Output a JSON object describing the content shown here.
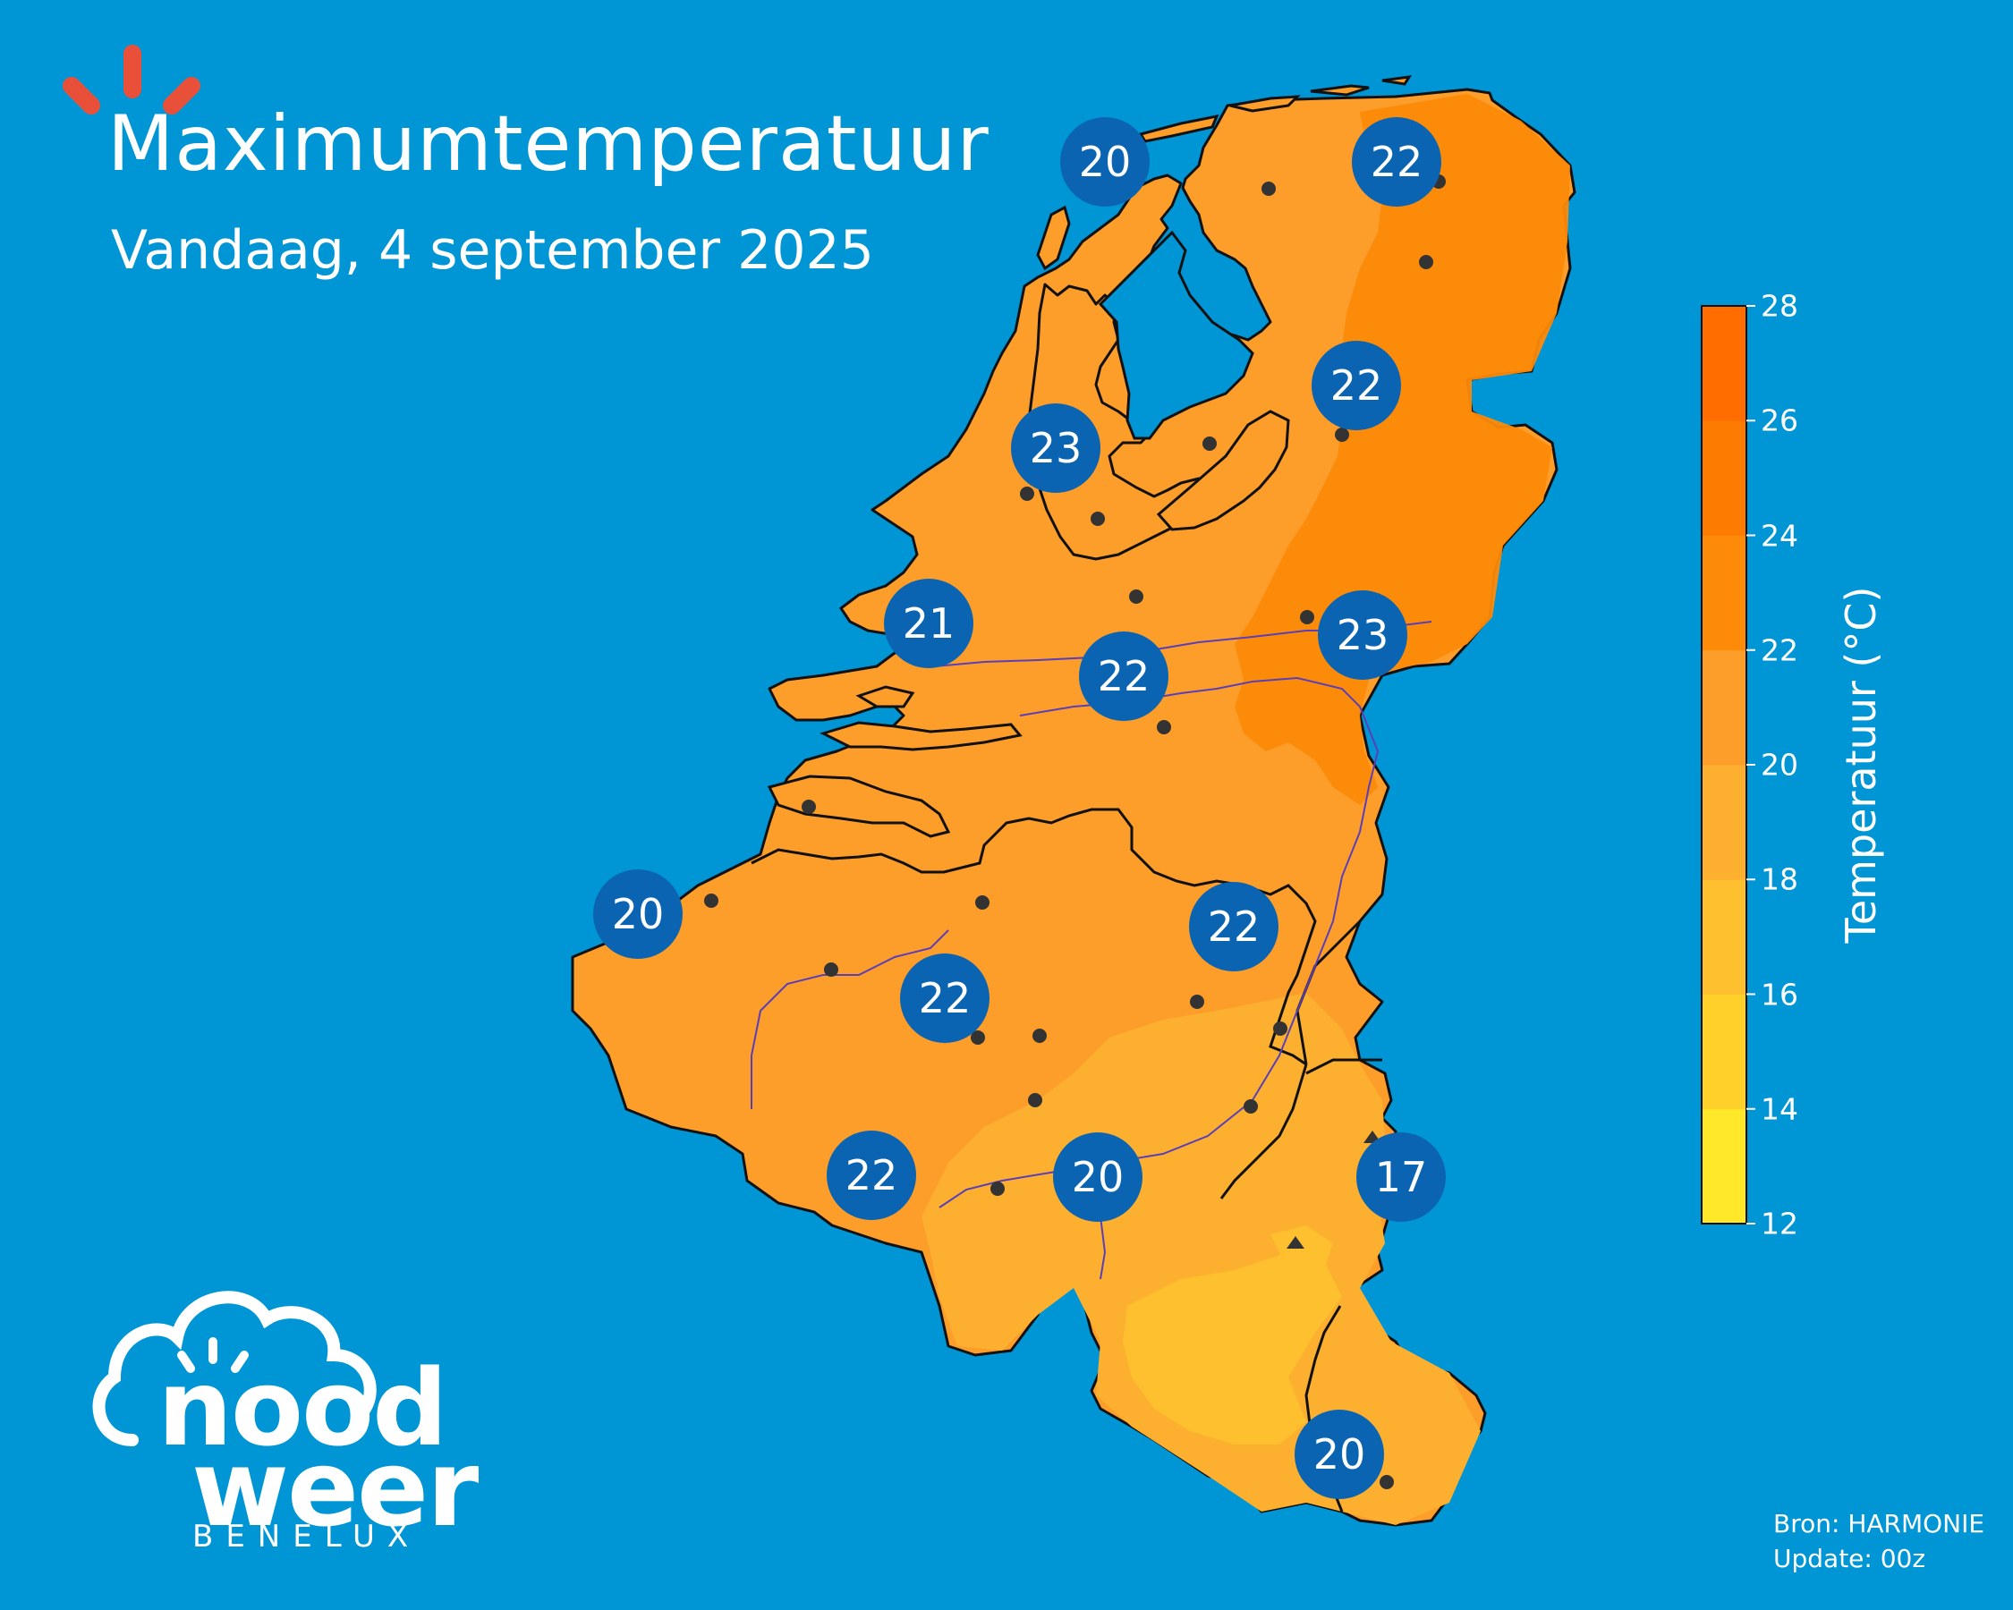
{
  "header": {
    "title": "Maximumtemperatuur",
    "subtitle": "Vandaag, 4 september 2025"
  },
  "colors": {
    "background": "#0096d6",
    "land": "#fd9d2a",
    "land_warm": "#fd8a08",
    "land_cool": "#fec02e",
    "badge": "#0b64b2",
    "border": "#111111",
    "river": "#5a3fb8",
    "logo_rays": "#e8503a"
  },
  "map": {
    "city_labels": [
      {
        "id": "vlieland",
        "value": "20"
      },
      {
        "id": "groningen",
        "value": "22"
      },
      {
        "id": "drenthe",
        "value": "22"
      },
      {
        "id": "den-helder",
        "value": "23"
      },
      {
        "id": "den-haag",
        "value": "21"
      },
      {
        "id": "utrecht",
        "value": "22"
      },
      {
        "id": "twente",
        "value": "23"
      },
      {
        "id": "oostende",
        "value": "20"
      },
      {
        "id": "limburg-nl",
        "value": "22"
      },
      {
        "id": "gent",
        "value": "22"
      },
      {
        "id": "henegouwen",
        "value": "22"
      },
      {
        "id": "namen",
        "value": "20"
      },
      {
        "id": "hoge-venen",
        "value": "17"
      },
      {
        "id": "luxemburg",
        "value": "20"
      }
    ]
  },
  "colorbar": {
    "title": "Temperatuur (°C)",
    "ticks": [
      "12",
      "14",
      "16",
      "18",
      "20",
      "22",
      "24",
      "26",
      "28"
    ],
    "colors": [
      "#ffe72a",
      "#ffd02a",
      "#fec02e",
      "#fdaf2f",
      "#fd9d2a",
      "#fd8a08",
      "#fd7b00",
      "#ff6c00"
    ]
  },
  "source": {
    "line1": "Bron: HARMONIE",
    "line2": "Update: 00z"
  },
  "logo": {
    "word1": "nood",
    "word2": "weer",
    "sub": "BENELUX"
  }
}
